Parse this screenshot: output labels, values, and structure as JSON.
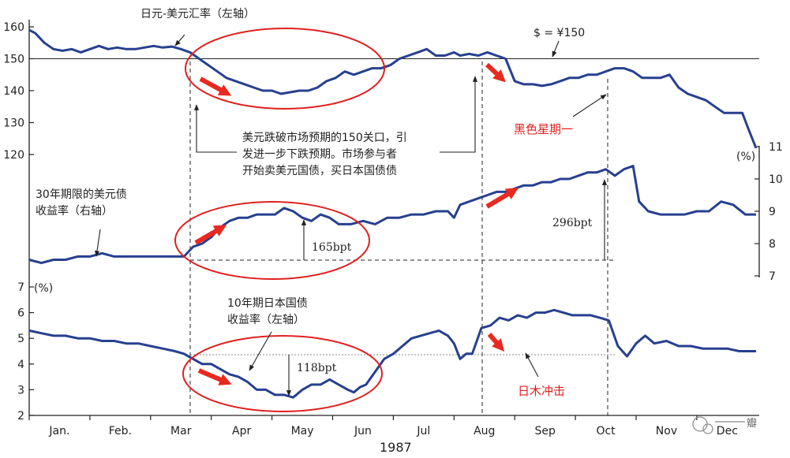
{
  "chart_data": {
    "type": "line",
    "x_axis": {
      "months": [
        "Jan.",
        "Feb.",
        "Mar",
        "Apr",
        "May",
        "Jun",
        "Jul",
        "Aug",
        "Sep",
        "Oct",
        "Nov",
        "Dec"
      ],
      "year_label": "1987"
    },
    "left_axis_top": {
      "ticks": [
        120,
        130,
        140,
        150,
        160
      ],
      "ylim": [
        118,
        162
      ]
    },
    "right_axis": {
      "unit": "(%)",
      "ticks": [
        7,
        8,
        9,
        10,
        11
      ],
      "ylim": [
        7,
        11
      ]
    },
    "left_axis_bottom": {
      "unit": "(%)",
      "ticks": [
        2,
        3,
        4,
        5,
        6,
        7
      ],
      "ylim": [
        2,
        7
      ]
    },
    "series": [
      {
        "name": "日元-美元汇率（左轴）",
        "axis": "left_top",
        "x_month": [
          0.0,
          0.1,
          0.25,
          0.4,
          0.55,
          0.7,
          0.85,
          1.0,
          1.15,
          1.3,
          1.45,
          1.6,
          1.75,
          1.9,
          2.05,
          2.2,
          2.35,
          2.5,
          2.65,
          2.8,
          2.95,
          3.1,
          3.25,
          3.4,
          3.55,
          3.7,
          3.85,
          4.0,
          4.15,
          4.3,
          4.45,
          4.6,
          4.75,
          4.9,
          5.05,
          5.2,
          5.35,
          5.5,
          5.65,
          5.8,
          5.95,
          6.1,
          6.25,
          6.4,
          6.55,
          6.7,
          6.85,
          7.0,
          7.1,
          7.25,
          7.4,
          7.55,
          7.7,
          7.85,
          8.0,
          8.15,
          8.3,
          8.45,
          8.6,
          8.75,
          8.9,
          9.05,
          9.2,
          9.35,
          9.5,
          9.65,
          9.8,
          9.95,
          10.1,
          10.25,
          10.4,
          10.55,
          10.7,
          10.85,
          11.0,
          11.15,
          11.3,
          11.45,
          11.6,
          11.75,
          11.85,
          12.0
        ],
        "values": [
          159,
          158,
          155,
          153,
          152.5,
          153,
          152,
          153,
          154,
          153,
          153.5,
          153,
          153,
          153.5,
          154,
          153.5,
          153.8,
          153,
          152,
          150,
          148,
          146,
          144,
          143,
          142,
          141,
          140,
          140,
          139,
          139.5,
          140,
          140,
          141,
          143,
          144,
          146,
          145,
          146,
          147,
          147,
          148,
          150,
          151,
          152,
          153,
          151,
          151,
          152,
          151,
          151.5,
          151,
          152,
          151,
          150,
          143,
          142,
          142,
          141.5,
          142,
          143,
          144,
          144,
          145,
          145,
          146,
          147,
          147,
          146,
          144,
          144,
          144,
          145,
          141,
          139,
          138,
          137,
          135,
          133,
          133,
          133,
          128,
          122
        ]
      },
      {
        "name": "30年期限的美元债收益率（右轴）",
        "axis": "right",
        "x_month": [
          0.0,
          0.2,
          0.4,
          0.6,
          0.8,
          1.0,
          1.2,
          1.4,
          1.6,
          1.8,
          2.0,
          2.2,
          2.4,
          2.55,
          2.7,
          2.85,
          3.0,
          3.15,
          3.3,
          3.45,
          3.6,
          3.75,
          3.9,
          4.05,
          4.2,
          4.35,
          4.5,
          4.65,
          4.8,
          4.95,
          5.1,
          5.3,
          5.5,
          5.7,
          5.9,
          6.1,
          6.3,
          6.5,
          6.7,
          6.9,
          7.0,
          7.1,
          7.25,
          7.4,
          7.55,
          7.7,
          7.85,
          8.0,
          8.15,
          8.3,
          8.45,
          8.6,
          8.75,
          8.9,
          9.05,
          9.2,
          9.35,
          9.5,
          9.65,
          9.8,
          9.95,
          10.05,
          10.2,
          10.4,
          10.6,
          10.8,
          11.0,
          11.2,
          11.4,
          11.6,
          11.8,
          12.0
        ],
        "values": [
          7.5,
          7.4,
          7.5,
          7.5,
          7.6,
          7.6,
          7.7,
          7.6,
          7.6,
          7.6,
          7.6,
          7.6,
          7.6,
          7.6,
          7.9,
          8.0,
          8.2,
          8.5,
          8.7,
          8.8,
          8.8,
          8.9,
          8.9,
          8.9,
          9.1,
          9.0,
          8.8,
          8.7,
          8.9,
          8.8,
          8.6,
          8.6,
          8.7,
          8.6,
          8.8,
          8.8,
          8.9,
          8.9,
          9.0,
          9.0,
          8.8,
          9.2,
          9.3,
          9.4,
          9.5,
          9.6,
          9.6,
          9.7,
          9.8,
          9.8,
          9.9,
          9.9,
          10.0,
          10.0,
          10.1,
          10.2,
          10.2,
          10.3,
          10.1,
          10.3,
          10.4,
          9.3,
          9.0,
          8.9,
          8.9,
          8.9,
          9.0,
          9.0,
          9.3,
          9.2,
          8.9,
          8.9
        ]
      },
      {
        "name": "10年期日本国债收益率（左轴）",
        "axis": "left_bottom",
        "x_month": [
          0.0,
          0.2,
          0.4,
          0.6,
          0.8,
          1.0,
          1.2,
          1.4,
          1.6,
          1.8,
          2.0,
          2.2,
          2.4,
          2.55,
          2.7,
          2.85,
          3.0,
          3.15,
          3.3,
          3.45,
          3.6,
          3.75,
          3.9,
          4.05,
          4.2,
          4.35,
          4.5,
          4.65,
          4.8,
          4.95,
          5.1,
          5.25,
          5.35,
          5.45,
          5.55,
          5.7,
          5.85,
          6.0,
          6.15,
          6.3,
          6.45,
          6.6,
          6.75,
          6.9,
          7.0,
          7.1,
          7.2,
          7.3,
          7.45,
          7.6,
          7.75,
          7.9,
          8.05,
          8.2,
          8.35,
          8.5,
          8.65,
          8.8,
          8.95,
          9.1,
          9.25,
          9.4,
          9.55,
          9.7,
          9.85,
          10.0,
          10.15,
          10.3,
          10.5,
          10.7,
          10.9,
          11.1,
          11.3,
          11.5,
          11.7,
          11.9,
          12.0
        ],
        "values": [
          5.3,
          5.2,
          5.1,
          5.1,
          5.0,
          5.0,
          4.9,
          4.9,
          4.8,
          4.8,
          4.7,
          4.6,
          4.5,
          4.4,
          4.2,
          4.0,
          4.0,
          3.8,
          3.6,
          3.5,
          3.3,
          3.0,
          3.0,
          2.8,
          2.8,
          2.7,
          3.0,
          3.2,
          3.2,
          3.4,
          3.2,
          3.0,
          2.9,
          3.1,
          3.2,
          3.7,
          4.2,
          4.4,
          4.7,
          5.0,
          5.1,
          5.2,
          5.3,
          5.1,
          4.8,
          4.2,
          4.4,
          4.4,
          5.4,
          5.5,
          5.8,
          5.7,
          5.9,
          5.8,
          6.0,
          6.0,
          6.1,
          6.0,
          5.9,
          5.9,
          5.9,
          5.8,
          5.7,
          4.7,
          4.3,
          4.8,
          5.1,
          4.8,
          4.9,
          4.7,
          4.7,
          4.6,
          4.6,
          4.6,
          4.5,
          4.5,
          4.5
        ]
      }
    ],
    "reference_line": {
      "label": "$ = ¥150",
      "value": 150,
      "axis": "left_top"
    },
    "annotations": {
      "jpy_usd_label": "日元-美元汇率（左轴）",
      "dollar_150": "$ = ¥150",
      "break_150_line1": "美元跌破市场预期的150关口，引",
      "break_150_line2": "发进一步下跌预期。市场参与者",
      "break_150_line3": "开始卖美元国债，买日本国债债",
      "black_monday": "黑色星期一",
      "us30_line1": "30年期限的美元债",
      "us30_line2": "收益率（右轴）",
      "jgb_line1": "10年期日本国债",
      "jgb_line2": "收益率（左轴）",
      "bpt_165": "165bpt",
      "bpt_296": "296bpt",
      "bpt_118": "118bpt",
      "japan_shock": "日木冲击"
    },
    "watermark": "瓣"
  },
  "colors": {
    "line": "#27408f",
    "annotation_red": "#e0201f",
    "arrow_red": "#e8291f",
    "axis": "#222222"
  }
}
